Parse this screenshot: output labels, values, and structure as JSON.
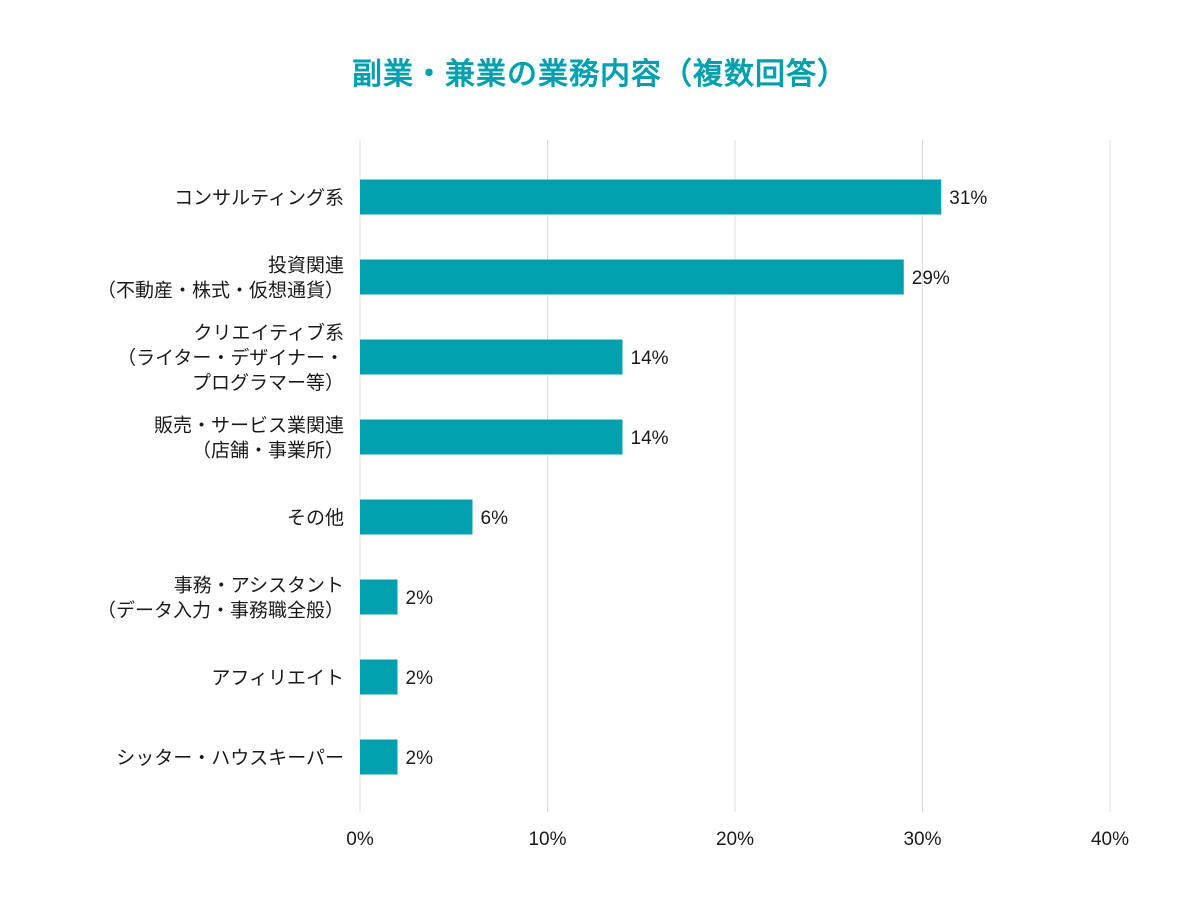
{
  "chart_data": {
    "type": "bar",
    "orientation": "horizontal",
    "title": "副業・兼業の業務内容（複数回答）",
    "categories": [
      [
        "コンサルティング系"
      ],
      [
        "投資関連",
        "（不動産・株式・仮想通貨）"
      ],
      [
        "クリエイティブ系",
        "（ライター・デザイナー・",
        "プログラマー等）"
      ],
      [
        "販売・サービス業関連",
        "（店舗・事業所）"
      ],
      [
        "その他"
      ],
      [
        "事務・アシスタント",
        "（データ入力・事務職全般）"
      ],
      [
        "アフィリエイト"
      ],
      [
        "シッター・ハウスキーパー"
      ]
    ],
    "values": [
      31,
      29,
      14,
      14,
      6,
      2,
      2,
      2
    ],
    "value_labels": [
      "31%",
      "29%",
      "14%",
      "14%",
      "6%",
      "2%",
      "2%",
      "2%"
    ],
    "xlim": [
      0,
      40
    ],
    "x_ticks": [
      0,
      10,
      20,
      30,
      40
    ],
    "x_tick_labels": [
      "0%",
      "10%",
      "20%",
      "30%",
      "40%"
    ],
    "unit": "%",
    "grid": "vertical",
    "legend": "none",
    "colors": {
      "bar": "#00a0ae",
      "title": "#00a0ae",
      "grid": "#dcdcdc",
      "text": "#1a1a1a"
    }
  }
}
